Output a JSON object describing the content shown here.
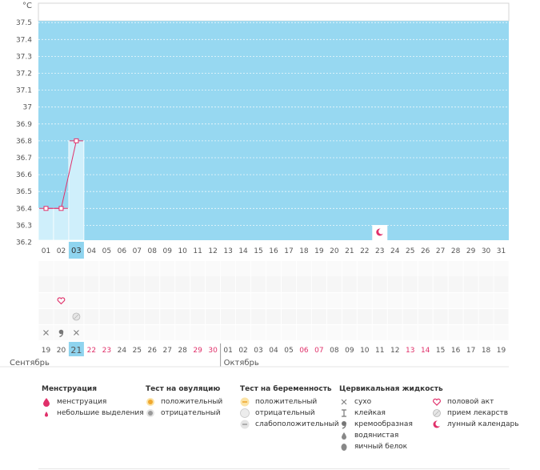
{
  "chart_data": {
    "type": "line",
    "unit": "°C",
    "y_ticks": [
      "37.5",
      "37.4",
      "37.3",
      "37.2",
      "37.1",
      "37",
      "36.9",
      "36.8",
      "36.7",
      "36.6",
      "36.5",
      "36.4",
      "36.3",
      "36.2"
    ],
    "ylim": [
      36.2,
      37.6
    ],
    "cycle_days": [
      "01",
      "02",
      "03",
      "04",
      "05",
      "06",
      "07",
      "08",
      "09",
      "10",
      "11",
      "12",
      "13",
      "14",
      "15",
      "16",
      "17",
      "18",
      "19",
      "20",
      "21",
      "22",
      "23",
      "24",
      "25",
      "26",
      "27",
      "28",
      "29",
      "30",
      "31"
    ],
    "temperatures": [
      36.4,
      36.4,
      36.8
    ],
    "current_day_index": 2,
    "dates": [
      "19",
      "20",
      "21",
      "22",
      "23",
      "24",
      "25",
      "26",
      "27",
      "28",
      "29",
      "30",
      "01",
      "02",
      "03",
      "04",
      "05",
      "06",
      "07",
      "08",
      "09",
      "10",
      "11",
      "12",
      "13",
      "14",
      "15",
      "16",
      "17",
      "18",
      "19"
    ],
    "red_date_indices": [
      3,
      4,
      10,
      11,
      17,
      18,
      24,
      25
    ],
    "months": [
      {
        "label": "Сентябрь",
        "start_index": 0
      },
      {
        "label": "Октябрь",
        "start_index": 12
      }
    ],
    "markers": [
      {
        "day_index": 22,
        "icon": "moon-icon"
      },
      {
        "day_index": 1,
        "row": 2,
        "icon": "heart-icon"
      },
      {
        "day_index": 2,
        "row": 3,
        "icon": "pill-icon"
      },
      {
        "day_index": 0,
        "row": 4,
        "icon": "dry-x-icon"
      },
      {
        "day_index": 1,
        "row": 4,
        "icon": "creamy-icon"
      },
      {
        "day_index": 2,
        "row": 4,
        "icon": "dry-x-icon"
      }
    ],
    "colors": {
      "band": "#97d8f1",
      "line": "#e0306a",
      "red_date": "#e0306a",
      "current_day": "#8fd4ef"
    }
  },
  "legend": {
    "menstruation": {
      "title": "Менструация",
      "items": [
        {
          "label": "менструация",
          "icon": "drop-icon"
        },
        {
          "label": "небольшие выделения",
          "icon": "small-drop-icon"
        }
      ]
    },
    "ovulation": {
      "title": "Тест на овуляцию",
      "items": [
        {
          "label": "положительный",
          "icon": "ovulation-positive-icon"
        },
        {
          "label": "отрицательный",
          "icon": "ovulation-negative-icon"
        }
      ]
    },
    "pregnancy": {
      "title": "Тест на беременность",
      "items": [
        {
          "label": "положительный",
          "icon": "pregnancy-positive-icon"
        },
        {
          "label": "отрицательный",
          "icon": "pregnancy-negative-icon"
        },
        {
          "label": "слабоположительный",
          "icon": "pregnancy-weak-icon"
        }
      ]
    },
    "cervical": {
      "title": "Цервикальная жидкость",
      "items": [
        {
          "label": "сухо",
          "icon": "dry-x-icon"
        },
        {
          "label": "клейкая",
          "icon": "sticky-icon"
        },
        {
          "label": "кремообразная",
          "icon": "creamy-icon"
        },
        {
          "label": "водянистая",
          "icon": "watery-icon"
        },
        {
          "label": "яичный белок",
          "icon": "egg-white-icon"
        }
      ]
    },
    "other": {
      "items": [
        {
          "label": "половой акт",
          "icon": "heart-icon"
        },
        {
          "label": "прием лекарств",
          "icon": "pill-icon"
        },
        {
          "label": "лунный календарь",
          "icon": "moon-icon"
        }
      ]
    }
  }
}
